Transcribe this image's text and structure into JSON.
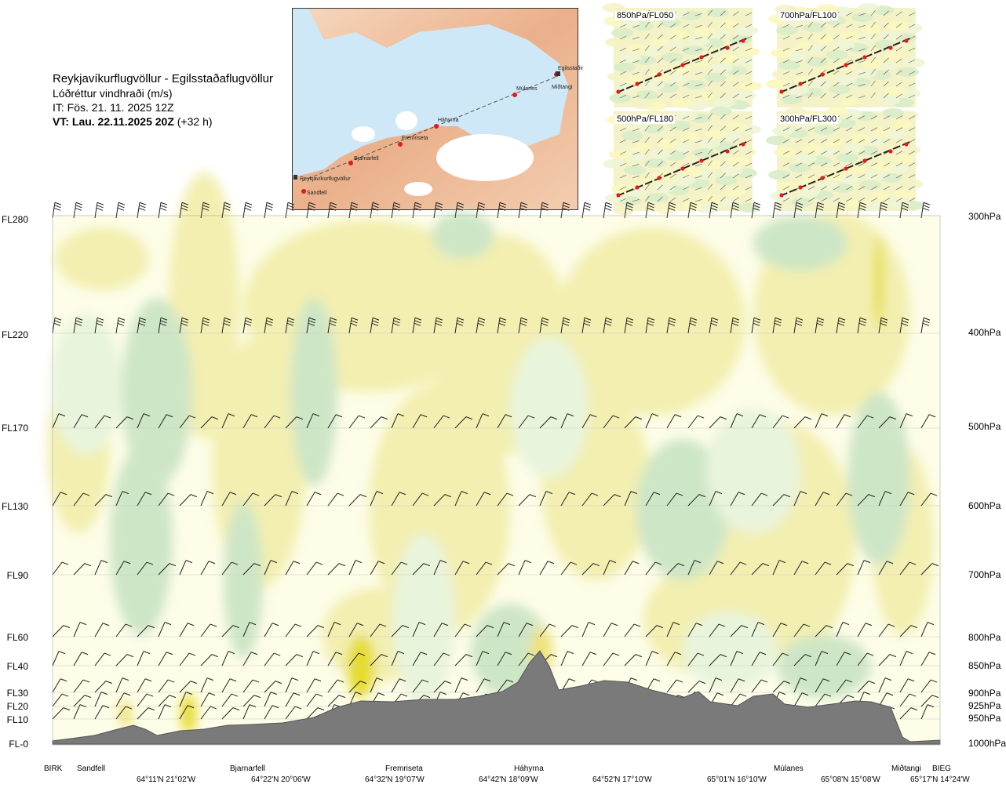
{
  "header": {
    "route": "Reykjavíkurflugvöllur - Egilsstaðaflugvöllur",
    "variable": "Lóðréttur vindhraði (m/s)",
    "issue_time": "IT: Fös. 21. 11. 2025 12Z",
    "valid_time": "VT: Lau. 22.11.2025 20Z",
    "lead": "(+32 h)"
  },
  "route_map": {
    "points": [
      {
        "name": "Reykjavíkurflugvöllur"
      },
      {
        "name": "Sandfell"
      },
      {
        "name": "Bjarnarfell"
      },
      {
        "name": "Fremriseta"
      },
      {
        "name": "Háhyrna"
      },
      {
        "name": "Múlanes"
      },
      {
        "name": "Egilsstaðir"
      },
      {
        "name": "Miðtangi"
      }
    ]
  },
  "mini_maps": [
    {
      "label": "850hPa/FL050"
    },
    {
      "label": "700hPa/FL100"
    },
    {
      "label": "500hPa/FL180"
    },
    {
      "label": "300hPa/FL300"
    }
  ],
  "levels": [
    {
      "fl": "FL280",
      "hpa": "300hPa"
    },
    {
      "fl": "FL220",
      "hpa": "400hPa"
    },
    {
      "fl": "FL170",
      "hpa": "500hPa"
    },
    {
      "fl": "FL130",
      "hpa": "600hPa"
    },
    {
      "fl": "FL90",
      "hpa": "700hPa"
    },
    {
      "fl": "FL60",
      "hpa": "800hPa"
    },
    {
      "fl": "FL40",
      "hpa": "850hPa"
    },
    {
      "fl": "FL30",
      "hpa": "900hPa"
    },
    {
      "fl": "FL20",
      "hpa": "925hPa"
    },
    {
      "fl": "FL10",
      "hpa": "950hPa"
    },
    {
      "fl": "FL-0",
      "hpa": "1000hPa"
    }
  ],
  "waypoints": [
    "BIRK",
    "Sandfell",
    "Bjarnarfell",
    "Fremriseta",
    "Háhyrna",
    "Múlanes",
    "Miðtangi",
    "BIEG"
  ],
  "coordinates": [
    "64°11'N 21°02'W",
    "64°22'N 20°06'W",
    "64°32'N 19°07'W",
    "64°42'N 18°09'W",
    "64°52'N 17°10'W",
    "65°01'N 16°10'W",
    "65°08'N 15°08'W",
    "65°17'N 14°24'W"
  ],
  "colors": {
    "updraft_weak": "#f3efb0",
    "updraft_mod": "#efe27a",
    "updraft_strong": "#e6dc2e",
    "downdraft_weak": "#e9f4dc",
    "downdraft_mod": "#cde6c6",
    "near_zero": "#fdfde8",
    "terrain": "#7a7a7a",
    "route_dot": "#e31a1c"
  }
}
